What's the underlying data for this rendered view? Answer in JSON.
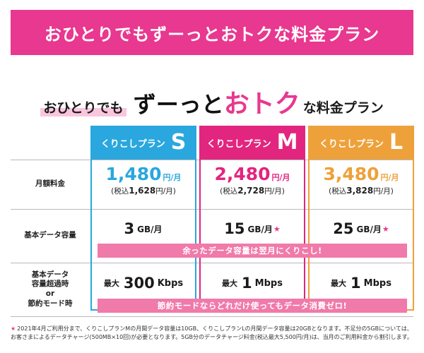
{
  "banner": {
    "title": "おひとりでもずーっとおトクな料金プラン"
  },
  "headline": {
    "prefix": "おひとりでも",
    "main": "ずーっと",
    "accent": "おトク",
    "suffix": "な料金プラン"
  },
  "row_labels": {
    "monthly_fee": "月額料金",
    "data_capacity": "基本データ容量",
    "speed": "基本データ容量超過時 or 節約モード時",
    "speed_line1": "基本データ",
    "speed_line2": "容量超過時",
    "speed_line3": "or",
    "speed_line4": "節約モード時"
  },
  "plans": [
    {
      "name": "くりこしプラン",
      "letter": "S",
      "color": "#2aa7de",
      "price": "1,480",
      "price_unit": "円/月",
      "tax_prefix": "(税込",
      "tax_price": "1,628",
      "tax_suffix": "円/月)",
      "capacity": "3",
      "capacity_unit": "GB/月",
      "capacity_star": "",
      "speed_prefix": "最大",
      "speed": "300",
      "speed_unit": "Kbps"
    },
    {
      "name": "くりこしプラン",
      "letter": "M",
      "color": "#e2257f",
      "price": "2,480",
      "price_unit": "円/月",
      "tax_prefix": "(税込",
      "tax_price": "2,728",
      "tax_suffix": "円/月)",
      "capacity": "15",
      "capacity_unit": "GB/月",
      "capacity_star": "★",
      "speed_prefix": "最大",
      "speed": "1",
      "speed_unit": "Mbps"
    },
    {
      "name": "くりこしプラン",
      "letter": "L",
      "color": "#eea13a",
      "price": "3,480",
      "price_unit": "円/月",
      "tax_prefix": "(税込",
      "tax_price": "3,828",
      "tax_suffix": "円/月)",
      "capacity": "25",
      "capacity_unit": "GB/月",
      "capacity_star": "★",
      "speed_prefix": "最大",
      "speed": "1",
      "speed_unit": "Mbps"
    }
  ],
  "bars": {
    "carryover": "余ったデータ容量は翌月にくりこし!",
    "saving": "節約モードならどれだけ使ってもデータ消費ゼロ!"
  },
  "footnote": {
    "star": "★",
    "text": "2021年4月ご利用分まで、くりこしプランMの月間データ容量は10GB、くりこしプランLの月間データ容量は20GBとなります。不足分の5GBについては、お客さまによるデータチャージ(500MB×10回)が必要となります。5GB分のデータチャージ料金(税込最大5,500円/月)は、当月のご利用料金から割引します。"
  },
  "colors": {
    "accent_pink": "#e8388f",
    "bar_pink": "#f07aa9"
  }
}
